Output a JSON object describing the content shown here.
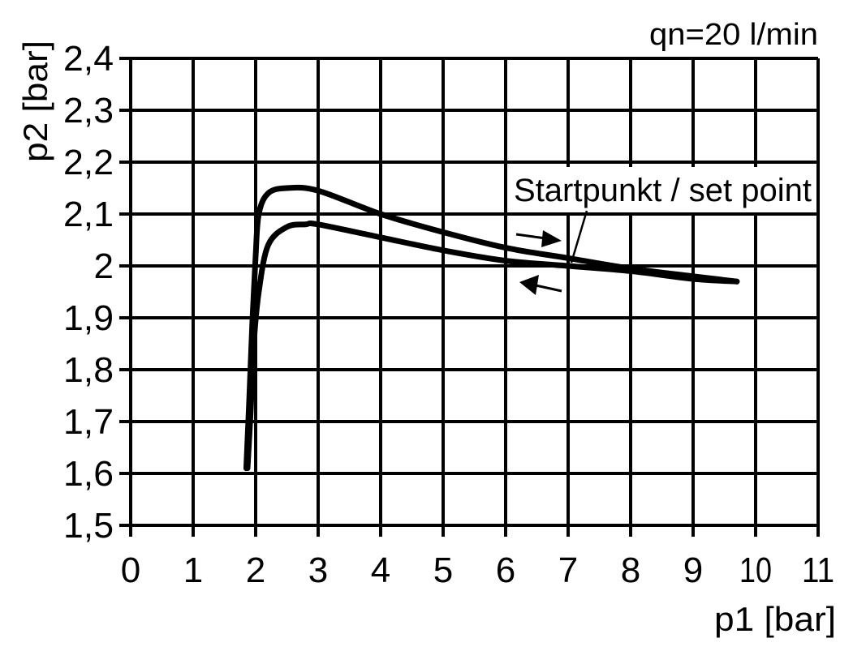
{
  "chart_data": {
    "type": "line",
    "annotation_top": "qn=20 l/min",
    "xlabel": "p1 [bar]",
    "ylabel": "p2 [bar]",
    "xlim": [
      0,
      11
    ],
    "ylim": [
      1.5,
      2.4
    ],
    "grid": true,
    "x_ticks": [
      "0",
      "1",
      "2",
      "3",
      "4",
      "5",
      "6",
      "7",
      "8",
      "9",
      "10",
      "11"
    ],
    "y_ticks": [
      "1,5",
      "1,6",
      "1,7",
      "1,8",
      "1,9",
      "2",
      "2,1",
      "2,2",
      "2,3",
      "2,4"
    ],
    "series": [
      {
        "x": [
          1.85,
          1.9,
          1.95,
          2.0,
          2.05,
          2.2,
          2.5,
          3,
          4,
          5,
          6,
          7,
          8,
          9,
          9.7
        ],
        "y": [
          1.61,
          1.75,
          1.9,
          2.02,
          2.1,
          2.14,
          2.15,
          2.145,
          2.1,
          2.065,
          2.035,
          2.015,
          1.995,
          1.98,
          1.97
        ]
      },
      {
        "x": [
          1.87,
          1.92,
          1.97,
          2.05,
          2.2,
          2.5,
          2.8,
          3,
          4,
          5,
          6,
          7,
          8,
          9,
          9.7
        ],
        "y": [
          1.61,
          1.72,
          1.85,
          1.95,
          2.04,
          2.075,
          2.08,
          2.08,
          2.055,
          2.03,
          2.01,
          2.0,
          1.99,
          1.975,
          1.97
        ]
      }
    ],
    "annotations": [
      {
        "text": "Startpunkt / set point",
        "x": 7,
        "y": 2.0
      }
    ],
    "line_color": "#000000"
  }
}
